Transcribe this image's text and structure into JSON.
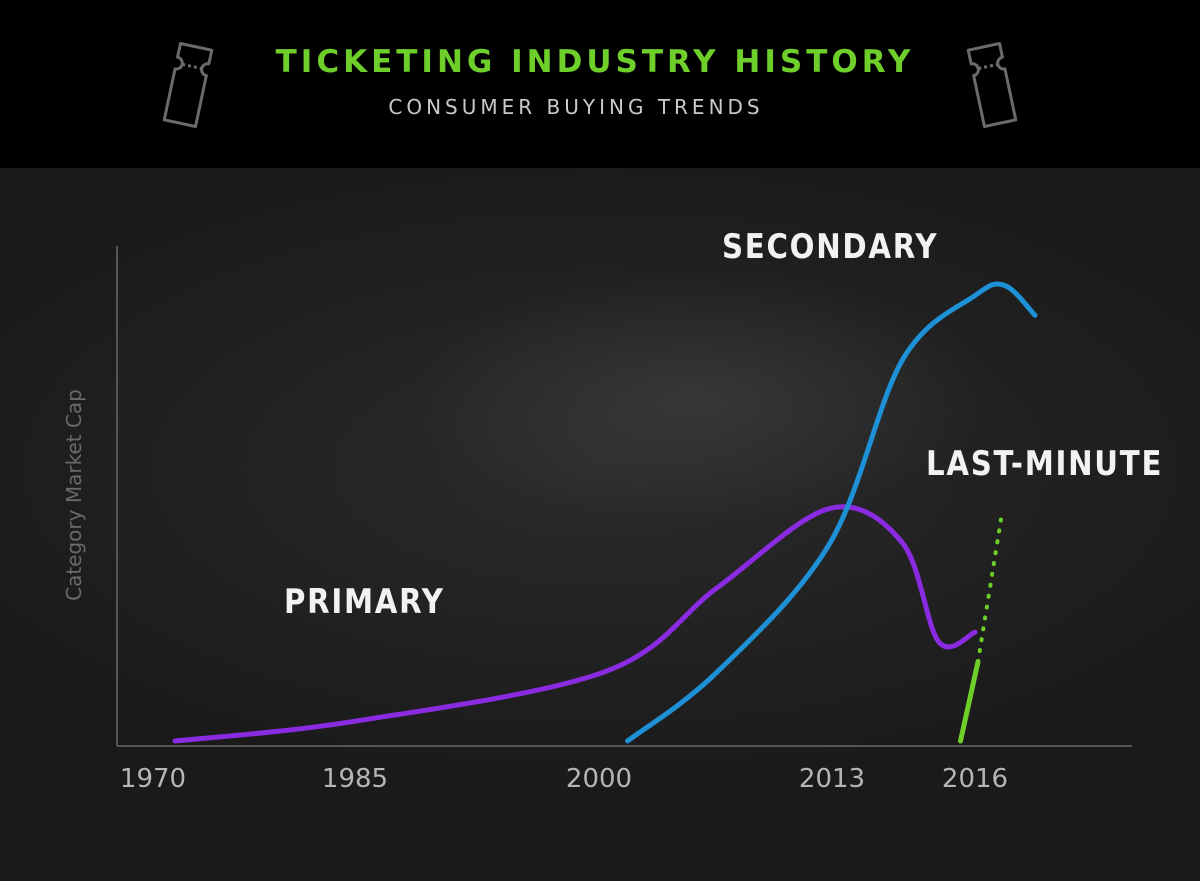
{
  "header": {
    "title": "TICKETING INDUSTRY HISTORY",
    "subtitle": "CONSUMER BUYING TRENDS",
    "ticket_icon": "ticket-icon"
  },
  "colors": {
    "header_bg": "#000000",
    "title": "#6fcf2a",
    "primary": "#8a2be2",
    "secondary": "#1e90d6",
    "last_minute": "#6fcf2a",
    "axis": "#555555"
  },
  "chart_data": {
    "type": "line",
    "title": "TICKETING INDUSTRY HISTORY",
    "subtitle": "CONSUMER BUYING TRENDS",
    "xlabel": "",
    "ylabel": "Category Market Cap",
    "x_tick_labels": [
      "1970",
      "1985",
      "2000",
      "2013",
      "2016"
    ],
    "y_ticks": false,
    "grid": false,
    "series": [
      {
        "name": "PRIMARY",
        "color": "#8a2be2",
        "style": "solid",
        "points": [
          [
            0,
            0
          ],
          [
            1,
            0.04
          ],
          [
            2,
            0.14
          ],
          [
            2.5,
            0.31
          ],
          [
            3,
            0.47
          ],
          [
            3.5,
            0.4
          ],
          [
            3.75,
            0.2
          ],
          [
            4,
            0.22
          ]
        ]
      },
      {
        "name": "SECONDARY",
        "color": "#1e90d6",
        "style": "solid",
        "points": [
          [
            2.1,
            0
          ],
          [
            2.5,
            0.14
          ],
          [
            3,
            0.4
          ],
          [
            3.5,
            0.77
          ],
          [
            4,
            0.9
          ],
          [
            4.5,
            0.92
          ],
          [
            5,
            0.86
          ]
        ]
      },
      {
        "name": "LAST-MINUTE",
        "color": "#6fcf2a",
        "style": "solid-then-dotted",
        "points": [
          [
            3.9,
            0
          ],
          [
            4.05,
            0.16
          ],
          [
            4.45,
            0.46
          ]
        ],
        "dotted_from_x": 4.05
      }
    ]
  }
}
